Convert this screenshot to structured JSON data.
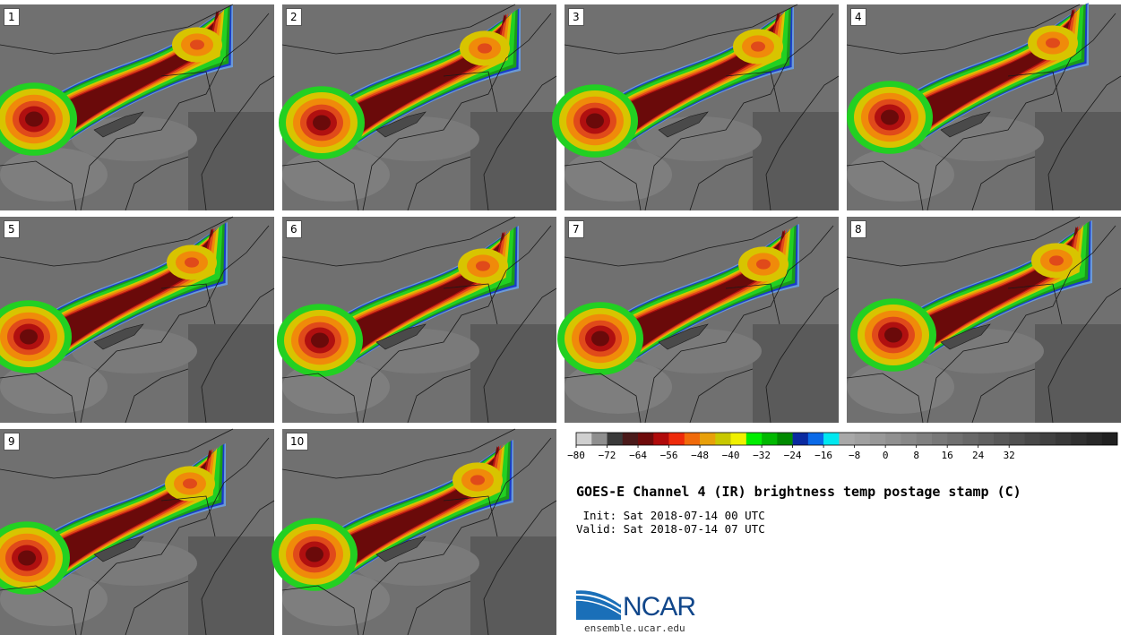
{
  "panels": [
    {
      "label": "1",
      "shift": [
        0,
        0
      ]
    },
    {
      "label": "2",
      "shift": [
        6,
        4
      ]
    },
    {
      "label": "3",
      "shift": [
        -4,
        2
      ]
    },
    {
      "label": "4",
      "shift": [
        10,
        -2
      ]
    },
    {
      "label": "5",
      "shift": [
        -6,
        6
      ]
    },
    {
      "label": "6",
      "shift": [
        4,
        10
      ]
    },
    {
      "label": "7",
      "shift": [
        2,
        8
      ]
    },
    {
      "label": "8",
      "shift": [
        14,
        4
      ]
    },
    {
      "label": "9",
      "shift": [
        -8,
        16
      ]
    },
    {
      "label": "10",
      "shift": [
        -2,
        12
      ]
    }
  ],
  "colorbar": {
    "colors": [
      "#cfcfcf",
      "#8f8f8f",
      "#3a3a3a",
      "#4a1a1a",
      "#6e0a0a",
      "#b00a0a",
      "#ee2a0a",
      "#f06a0a",
      "#e8a00a",
      "#c8c800",
      "#f0f000",
      "#00ee00",
      "#00b800",
      "#008a00",
      "#0a2aa0",
      "#0a6ae8",
      "#00e8f0",
      "#a8a8a8",
      "#a0a0a0",
      "#989898",
      "#909090",
      "#888888",
      "#808080",
      "#787878",
      "#707070",
      "#686868",
      "#606060",
      "#585858",
      "#505050",
      "#484848",
      "#404040",
      "#383838",
      "#303030",
      "#282828",
      "#202020"
    ],
    "tick_labels": [
      "−80",
      "−72",
      "−64",
      "−56",
      "−48",
      "−40",
      "−32",
      "−24",
      "−16",
      "−8",
      "0",
      "8",
      "16",
      "24",
      "32"
    ]
  },
  "title": "GOES-E Channel 4 (IR) brightness temp postage stamp (C)",
  "init": " Init: Sat 2018-07-14 00 UTC",
  "valid": "Valid: Sat 2018-07-14 07 UTC",
  "logo_text": "NCAR",
  "site": "ensemble.ucar.edu"
}
